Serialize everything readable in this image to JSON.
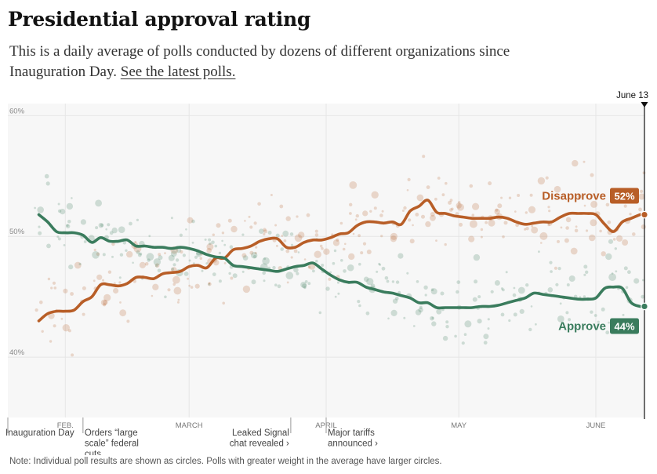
{
  "header": {
    "title": "Presidential approval rating",
    "subtitle_part1": "This is a daily average of polls conducted by dozens of different organizations since Inauguration Day.",
    "subtitle_link": "See the latest polls."
  },
  "note": "Note: Individual poll results are shown as circles. Polls with greater weight in the average have larger circles.",
  "colors": {
    "approve": "#3a7c5d",
    "disapprove": "#b85e27",
    "plot_bg": "#f7f7f7",
    "grid": "#e6e6e6",
    "text_muted": "#666666"
  },
  "chart_data": {
    "type": "line",
    "title": "Presidential approval rating",
    "x_domain": [
      -1,
      143
    ],
    "ylim": [
      35,
      61
    ],
    "y_ticks": [
      {
        "value": 40,
        "label": "40%"
      },
      {
        "value": 50,
        "label": "50%"
      },
      {
        "value": 60,
        "label": "60%"
      }
    ],
    "x_ticks": [
      {
        "day": 12,
        "label": "FEB."
      },
      {
        "day": 40,
        "label": "MARCH"
      },
      {
        "day": 71,
        "label": "APRIL"
      },
      {
        "day": 101,
        "label": "MAY"
      },
      {
        "day": 132,
        "label": "JUNE"
      }
    ],
    "current_marker": {
      "day": 143,
      "label": "June 13"
    },
    "series": [
      {
        "name": "Disapprove",
        "key": "disapprove",
        "final_label": "52%",
        "days": [
          6,
          8,
          10,
          12,
          14,
          16,
          18,
          20,
          22,
          24,
          26,
          28,
          30,
          32,
          34,
          36,
          38,
          40,
          42,
          44,
          46,
          48,
          50,
          52,
          54,
          56,
          58,
          60,
          62,
          64,
          66,
          68,
          70,
          72,
          74,
          76,
          78,
          80,
          82,
          84,
          86,
          88,
          90,
          92,
          94,
          96,
          98,
          100,
          102,
          104,
          106,
          108,
          110,
          112,
          114,
          116,
          118,
          120,
          122,
          124,
          126,
          128,
          130,
          132,
          134,
          136,
          138,
          140,
          142
        ],
        "values": [
          43.0,
          43.6,
          43.8,
          43.8,
          43.9,
          44.6,
          45.0,
          46.0,
          46.0,
          45.9,
          46.1,
          46.6,
          46.6,
          46.5,
          46.9,
          47.0,
          47.1,
          47.5,
          47.6,
          47.4,
          48.2,
          48.2,
          48.9,
          49.0,
          49.2,
          49.6,
          49.8,
          49.8,
          49.1,
          49.1,
          49.5,
          49.7,
          49.7,
          49.9,
          50.2,
          50.3,
          50.9,
          51.2,
          51.2,
          51.1,
          51.2,
          51.0,
          52.1,
          52.5,
          53.0,
          52.0,
          51.9,
          51.7,
          51.6,
          51.5,
          51.5,
          51.5,
          51.6,
          51.5,
          51.2,
          51.0,
          51.1,
          51.2,
          51.2,
          51.6,
          51.9,
          51.9,
          51.9,
          51.8,
          51.0,
          50.4,
          51.2,
          51.5,
          51.8
        ]
      },
      {
        "name": "Approve",
        "key": "approve",
        "final_label": "44%",
        "days": [
          6,
          8,
          10,
          12,
          14,
          16,
          18,
          20,
          22,
          24,
          26,
          28,
          30,
          32,
          34,
          36,
          38,
          40,
          42,
          44,
          46,
          48,
          50,
          52,
          54,
          56,
          58,
          60,
          62,
          64,
          66,
          68,
          70,
          72,
          74,
          76,
          78,
          80,
          82,
          84,
          86,
          88,
          90,
          92,
          94,
          96,
          98,
          100,
          102,
          104,
          106,
          108,
          110,
          112,
          114,
          116,
          118,
          120,
          122,
          124,
          126,
          128,
          130,
          132,
          134,
          136,
          138,
          140,
          142
        ],
        "values": [
          51.8,
          51.2,
          50.4,
          50.3,
          50.3,
          50.1,
          49.5,
          49.9,
          49.6,
          49.6,
          49.7,
          49.2,
          49.2,
          49.1,
          49.1,
          49.0,
          49.1,
          49.0,
          48.8,
          48.5,
          48.3,
          48.2,
          47.6,
          47.5,
          47.4,
          47.3,
          47.2,
          47.1,
          47.3,
          47.5,
          47.6,
          47.8,
          47.3,
          46.8,
          46.4,
          46.2,
          46.2,
          45.8,
          45.6,
          45.4,
          45.3,
          45.1,
          44.9,
          44.5,
          44.5,
          44.1,
          44.1,
          44.1,
          44.1,
          44.1,
          44.2,
          44.2,
          44.3,
          44.5,
          44.7,
          44.9,
          45.3,
          45.2,
          45.1,
          45.0,
          44.9,
          44.8,
          44.8,
          44.9,
          45.7,
          45.8,
          45.7,
          44.5,
          44.2
        ]
      }
    ],
    "events": [
      {
        "day": -1,
        "text": "Inauguration Day",
        "align": "left"
      },
      {
        "day": 16,
        "text": "Orders “large scale” federal cuts",
        "align": "left"
      },
      {
        "day": 63,
        "text": "Leaked Signal chat revealed ›",
        "align": "right"
      },
      {
        "day": 71,
        "text": "Major tariffs announced ›",
        "align": "left"
      }
    ]
  }
}
